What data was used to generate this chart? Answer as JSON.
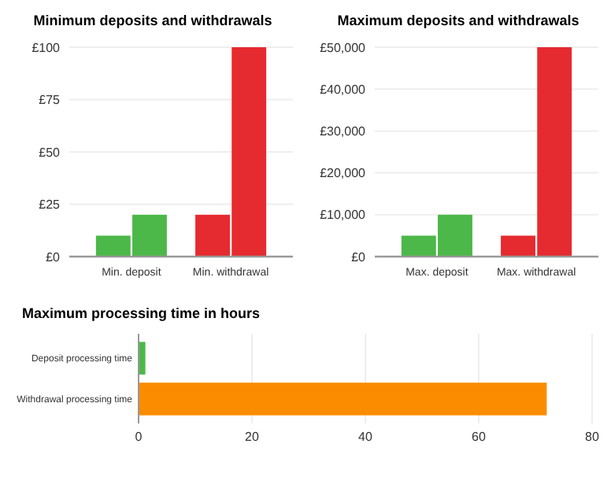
{
  "chart_data": [
    {
      "type": "bar",
      "title": "Minimum deposits and withdrawals",
      "categories": [
        "Min. deposit",
        "Min. withdrawal"
      ],
      "series": [
        {
          "values": [
            10,
            20
          ],
          "colors": [
            "#4cb849",
            "#e52b2f"
          ]
        },
        {
          "values": [
            20,
            100
          ],
          "colors": [
            "#4cb849",
            "#e52b2f"
          ]
        }
      ],
      "ylim": [
        0,
        100
      ],
      "yticks": [
        {
          "value": 0,
          "label": "£0"
        },
        {
          "value": 25,
          "label": "£25"
        },
        {
          "value": 50,
          "label": "£50"
        },
        {
          "value": 75,
          "label": "£75"
        },
        {
          "value": 100,
          "label": "£100"
        }
      ],
      "grid": "y"
    },
    {
      "type": "bar",
      "title": "Maximum deposits and withdrawals",
      "categories": [
        "Max. deposit",
        "Max. withdrawal"
      ],
      "series": [
        {
          "values": [
            5000,
            5000
          ],
          "colors": [
            "#4cb849",
            "#e52b2f"
          ]
        },
        {
          "values": [
            10000,
            50000
          ],
          "colors": [
            "#4cb849",
            "#e52b2f"
          ]
        }
      ],
      "ylim": [
        0,
        50000
      ],
      "yticks": [
        {
          "value": 0,
          "label": "£0"
        },
        {
          "value": 10000,
          "label": "£10,000"
        },
        {
          "value": 20000,
          "label": "£20,000"
        },
        {
          "value": 30000,
          "label": "£30,000"
        },
        {
          "value": 40000,
          "label": "£40,000"
        },
        {
          "value": 50000,
          "label": "£50,000"
        }
      ],
      "grid": "y"
    },
    {
      "type": "bar",
      "orientation": "horizontal",
      "title": "Maximum processing time in hours",
      "categories": [
        "Deposit processing time",
        "Withdrawal processing time"
      ],
      "values": [
        1.2,
        72
      ],
      "colors": [
        "#4cb849",
        "#fb8c00"
      ],
      "xlim": [
        0,
        80
      ],
      "xticks": [
        0,
        20,
        40,
        60,
        80
      ],
      "grid": "x"
    }
  ]
}
